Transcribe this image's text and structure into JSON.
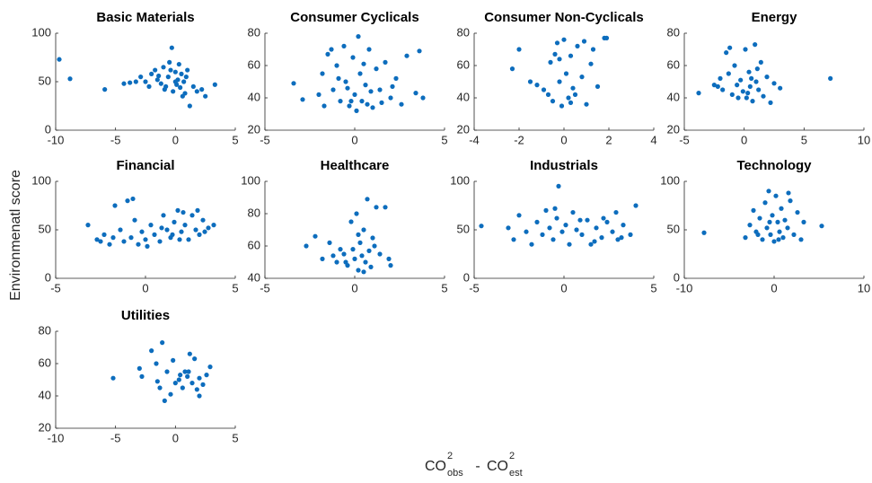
{
  "figure": {
    "y_label": "Environmenatl score",
    "x_label_parts": [
      "CO",
      "2",
      "obs",
      "-",
      "CO",
      "2",
      "est"
    ]
  },
  "chart_data": [
    {
      "type": "scatter",
      "title": "Basic Materials",
      "color": "#0d6dbd",
      "xlim": [
        -10,
        5
      ],
      "ylim": [
        0,
        100
      ],
      "xticks": [
        -10,
        -5,
        0,
        5
      ],
      "yticks": [
        0,
        50,
        100
      ],
      "x": [
        -9.7,
        -8.8,
        -5.9,
        -4.3,
        -3.8,
        -3.3,
        -2.9,
        -2.5,
        -2.0,
        -1.7,
        -1.5,
        -1.2,
        -1.0,
        -0.8,
        -0.6,
        -0.5,
        -0.3,
        -0.2,
        0,
        0.1,
        0.2,
        0.3,
        0.4,
        0.5,
        0.7,
        0.8,
        0.9,
        1.0,
        1.2,
        1.5,
        1.8,
        2.2,
        2.5,
        3.3,
        -1.4,
        -0.9,
        0.6,
        -2.2,
        0.0,
        -0.4
      ],
      "y": [
        73,
        53,
        42,
        48,
        49,
        50,
        55,
        50,
        58,
        62,
        52,
        48,
        65,
        45,
        55,
        70,
        85,
        40,
        60,
        47,
        52,
        68,
        44,
        58,
        50,
        38,
        55,
        62,
        25,
        45,
        40,
        42,
        35,
        47,
        56,
        42,
        35,
        45,
        50,
        62
      ]
    },
    {
      "type": "scatter",
      "title": "Consumer Cyclicals",
      "color": "#0d6dbd",
      "xlim": [
        -5,
        5
      ],
      "ylim": [
        20,
        80
      ],
      "xticks": [
        -5,
        0,
        5
      ],
      "yticks": [
        20,
        40,
        60,
        80
      ],
      "x": [
        -3.4,
        -2.9,
        -1.8,
        -1.5,
        -1.2,
        -1.0,
        -0.8,
        -0.6,
        -0.5,
        -0.3,
        -0.1,
        0,
        0.2,
        0.3,
        0.4,
        0.6,
        0.8,
        1.0,
        1.2,
        1.4,
        1.7,
        2.0,
        2.3,
        2.6,
        2.9,
        3.4,
        3.6,
        3.8,
        -2.0,
        -1.7,
        -0.9,
        0.1,
        0.9,
        1.5,
        -0.4,
        0.5,
        -1.3,
        2.1,
        -0.2,
        0.7
      ],
      "y": [
        49,
        39,
        55,
        67,
        45,
        60,
        38,
        72,
        50,
        35,
        65,
        42,
        78,
        55,
        38,
        48,
        70,
        34,
        58,
        45,
        62,
        40,
        52,
        36,
        66,
        43,
        69,
        40,
        42,
        35,
        52,
        32,
        44,
        37,
        46,
        61,
        70,
        47,
        38,
        36
      ]
    },
    {
      "type": "scatter",
      "title": "Consumer Non-Cyclicals",
      "color": "#0d6dbd",
      "xlim": [
        -4,
        4
      ],
      "ylim": [
        20,
        80
      ],
      "xticks": [
        -4,
        -2,
        0,
        2,
        4
      ],
      "yticks": [
        20,
        40,
        60,
        80
      ],
      "x": [
        -2.3,
        -2.0,
        -1.2,
        -0.9,
        -0.6,
        -0.5,
        -0.3,
        -0.2,
        -0.1,
        0,
        0.1,
        0.2,
        0.3,
        0.4,
        0.6,
        0.8,
        1.0,
        1.2,
        1.5,
        1.8,
        1.9,
        0.5,
        -0.4,
        0.9,
        -0.7,
        0.3,
        -0.2,
        1.3,
        -1.5
      ],
      "y": [
        58,
        70,
        48,
        45,
        62,
        38,
        74,
        50,
        35,
        76,
        55,
        40,
        66,
        46,
        72,
        53,
        36,
        61,
        47,
        77,
        77,
        42,
        67,
        75,
        42,
        37,
        64,
        70,
        50
      ]
    },
    {
      "type": "scatter",
      "title": "Energy",
      "color": "#0d6dbd",
      "xlim": [
        -5,
        10
      ],
      "ylim": [
        20,
        80
      ],
      "xticks": [
        -5,
        0,
        5,
        10
      ],
      "yticks": [
        20,
        40,
        60,
        80
      ],
      "x": [
        -3.8,
        -2.5,
        -2.0,
        -1.8,
        -1.5,
        -1.3,
        -1.0,
        -0.8,
        -0.6,
        -0.3,
        -0.1,
        0.1,
        0.2,
        0.4,
        0.5,
        0.7,
        0.9,
        1.0,
        1.2,
        1.4,
        1.6,
        1.9,
        2.2,
        2.5,
        3.0,
        7.2,
        -0.5,
        0.3,
        -1.2,
        1.1,
        0.6,
        -2.2
      ],
      "y": [
        43,
        48,
        52,
        45,
        68,
        55,
        42,
        60,
        48,
        51,
        44,
        70,
        40,
        56,
        47,
        38,
        73,
        50,
        45,
        62,
        41,
        53,
        37,
        49,
        46,
        52,
        40,
        43,
        71,
        58,
        52,
        47
      ]
    },
    {
      "type": "scatter",
      "title": "Financial",
      "color": "#0d6dbd",
      "xlim": [
        -5,
        5
      ],
      "ylim": [
        0,
        100
      ],
      "xticks": [
        -5,
        0,
        5
      ],
      "yticks": [
        0,
        50,
        100
      ],
      "x": [
        -3.2,
        -2.7,
        -2.3,
        -2.0,
        -1.7,
        -1.4,
        -1.2,
        -1.0,
        -0.8,
        -0.6,
        -0.4,
        -0.2,
        0,
        0.3,
        0.5,
        0.8,
        1.0,
        1.2,
        1.4,
        1.6,
        1.8,
        2.0,
        2.2,
        2.4,
        2.6,
        2.8,
        3.0,
        3.2,
        3.5,
        3.8,
        -0.7,
        1.5,
        2.1,
        -1.8,
        0.9,
        2.9,
        -2.5,
        0.1,
        1.9,
        3.3
      ],
      "y": [
        55,
        40,
        45,
        35,
        75,
        50,
        38,
        80,
        42,
        60,
        35,
        48,
        40,
        55,
        45,
        38,
        65,
        50,
        42,
        58,
        70,
        48,
        55,
        40,
        65,
        50,
        45,
        60,
        52,
        55,
        82,
        45,
        68,
        42,
        52,
        70,
        38,
        33,
        40,
        48
      ]
    },
    {
      "type": "scatter",
      "title": "Healthcare",
      "color": "#0d6dbd",
      "xlim": [
        -5,
        5
      ],
      "ylim": [
        40,
        100
      ],
      "xticks": [
        -5,
        0,
        5
      ],
      "yticks": [
        40,
        60,
        80,
        100
      ],
      "x": [
        -2.7,
        -2.2,
        -1.8,
        -1.4,
        -1.0,
        -0.8,
        -0.6,
        -0.4,
        -0.2,
        0,
        0.1,
        0.2,
        0.3,
        0.4,
        0.5,
        0.6,
        0.7,
        0.8,
        0.9,
        1.0,
        1.2,
        1.4,
        1.7,
        1.9,
        2.0,
        -0.5,
        0.5,
        1.1,
        -1.2,
        0.2,
        -0.1
      ],
      "y": [
        60,
        66,
        52,
        62,
        50,
        58,
        55,
        48,
        75,
        52,
        80,
        45,
        62,
        54,
        70,
        50,
        89,
        57,
        47,
        65,
        84,
        55,
        84,
        52,
        48,
        50,
        44,
        60,
        54,
        67,
        58
      ]
    },
    {
      "type": "scatter",
      "title": "Industrials",
      "color": "#0d6dbd",
      "xlim": [
        -5,
        5
      ],
      "ylim": [
        0,
        100
      ],
      "xticks": [
        -5,
        0,
        5
      ],
      "yticks": [
        0,
        50,
        100
      ],
      "x": [
        -4.6,
        -3.1,
        -2.5,
        -2.1,
        -1.8,
        -1.5,
        -1.2,
        -1.0,
        -0.8,
        -0.6,
        -0.4,
        -0.3,
        -0.1,
        0.1,
        0.3,
        0.5,
        0.7,
        1.0,
        1.3,
        1.5,
        1.8,
        2.1,
        2.4,
        2.7,
        3.0,
        3.3,
        3.7,
        4.0,
        -2.8,
        2.9,
        0.9,
        -0.5,
        1.7,
        2.2,
        3.2
      ],
      "y": [
        54,
        52,
        65,
        48,
        35,
        58,
        45,
        70,
        52,
        40,
        62,
        95,
        48,
        55,
        35,
        68,
        50,
        45,
        60,
        35,
        52,
        42,
        58,
        48,
        40,
        55,
        45,
        75,
        40,
        68,
        60,
        72,
        38,
        62,
        42
      ]
    },
    {
      "type": "scatter",
      "title": "Technology",
      "color": "#0d6dbd",
      "xlim": [
        -10,
        10
      ],
      "ylim": [
        0,
        100
      ],
      "xticks": [
        -10,
        0,
        10
      ],
      "yticks": [
        0,
        50,
        100
      ],
      "x": [
        -7.8,
        -3.2,
        -2.7,
        -2.3,
        -2.0,
        -1.6,
        -1.3,
        -1.0,
        -0.8,
        -0.6,
        -0.4,
        -0.2,
        0,
        0.2,
        0.4,
        0.6,
        0.8,
        1.0,
        1.2,
        1.5,
        1.8,
        2.2,
        2.6,
        3.0,
        3.3,
        5.3,
        -1.8,
        0.5,
        -0.5,
        1.6
      ],
      "y": [
        47,
        42,
        55,
        70,
        48,
        62,
        40,
        78,
        52,
        90,
        45,
        65,
        38,
        85,
        58,
        48,
        72,
        42,
        60,
        52,
        80,
        45,
        68,
        40,
        58,
        54,
        45,
        40,
        58,
        88
      ]
    },
    {
      "type": "scatter",
      "title": "Utilities",
      "color": "#0d6dbd",
      "xlim": [
        -10,
        5
      ],
      "ylim": [
        20,
        80
      ],
      "xticks": [
        -10,
        -5,
        0,
        5
      ],
      "yticks": [
        20,
        40,
        60,
        80
      ],
      "x": [
        -5.2,
        -3.0,
        -2.8,
        -2.0,
        -1.6,
        -1.3,
        -1.1,
        -0.9,
        -0.7,
        -0.4,
        -0.2,
        0,
        0.3,
        0.6,
        0.8,
        1.0,
        1.2,
        1.4,
        1.6,
        1.8,
        2.0,
        2.3,
        2.6,
        2.9,
        1.1,
        -1.5,
        0.4,
        2.0
      ],
      "y": [
        51,
        57,
        52,
        68,
        60,
        45,
        73,
        37,
        55,
        41,
        62,
        48,
        50,
        45,
        55,
        52,
        66,
        48,
        63,
        44,
        51,
        47,
        53,
        58,
        55,
        49,
        53,
        40
      ]
    }
  ]
}
